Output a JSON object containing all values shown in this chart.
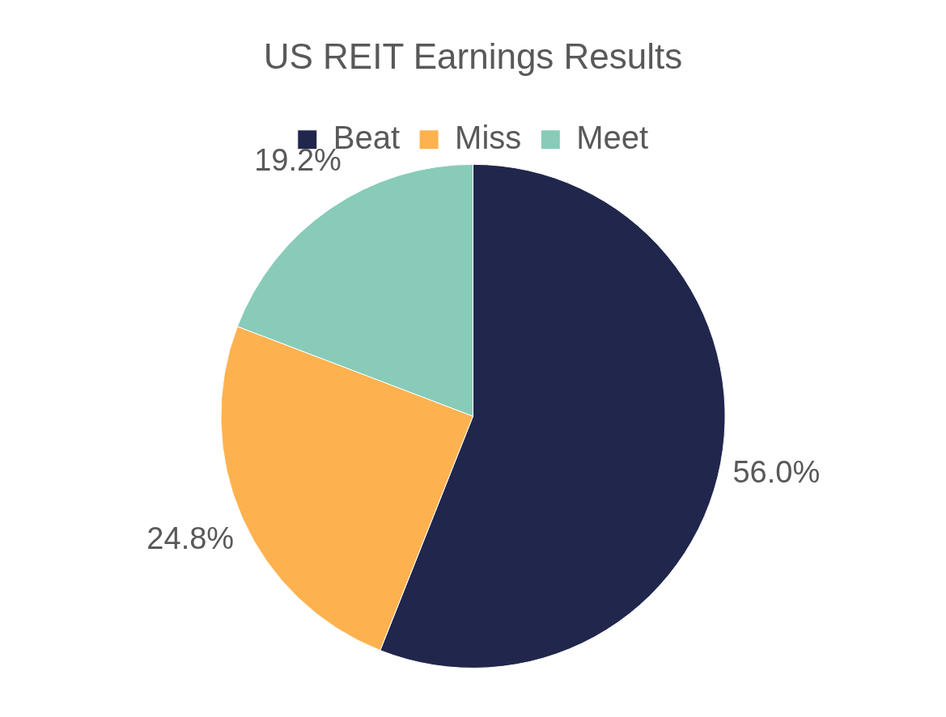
{
  "chart_data": {
    "type": "pie",
    "title": "US REIT Earnings Results",
    "categories": [
      "Beat",
      "Miss",
      "Meet"
    ],
    "values": [
      56.0,
      24.8,
      19.2
    ],
    "value_labels": [
      "56.0%",
      "24.8%",
      "19.2%"
    ],
    "colors": [
      "#21264d",
      "#fdb24f",
      "#88cbb8"
    ],
    "legend": "top"
  }
}
